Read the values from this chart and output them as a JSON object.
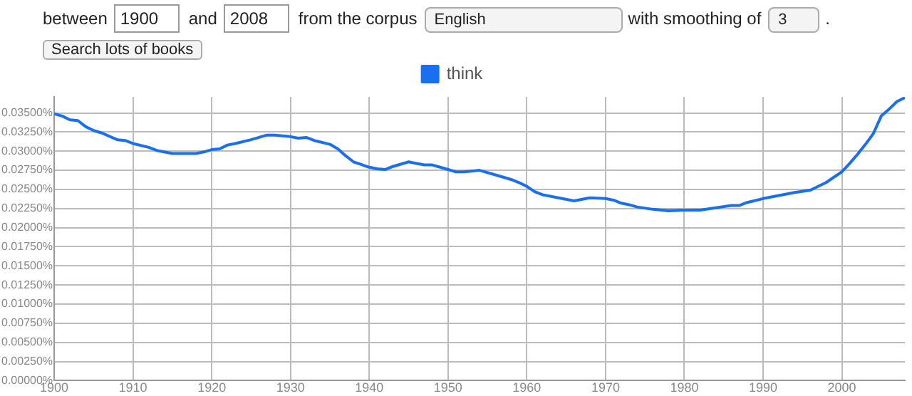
{
  "chart_data": {
    "type": "line",
    "annotations": [
      "between",
      "1900",
      "and",
      "2008",
      "from the corpus",
      "English",
      "with smoothing of",
      "3",
      ".",
      "Search lots of books"
    ],
    "x": [
      1900,
      1901,
      1902,
      1903,
      1904,
      1905,
      1906,
      1908,
      1909,
      1910,
      1912,
      1913,
      1915,
      1916,
      1918,
      1919,
      1920,
      1921,
      1922,
      1923,
      1925,
      1927,
      1928,
      1930,
      1931,
      1932,
      1933,
      1935,
      1936,
      1937,
      1938,
      1940,
      1941,
      1942,
      1943,
      1945,
      1946,
      1947,
      1948,
      1949,
      1951,
      1952,
      1953,
      1954,
      1956,
      1958,
      1959,
      1960,
      1961,
      1962,
      1964,
      1966,
      1968,
      1970,
      1971,
      1972,
      1973,
      1974,
      1976,
      1978,
      1980,
      1982,
      1984,
      1986,
      1987,
      1988,
      1990,
      1992,
      1994,
      1996,
      1998,
      2000,
      2001,
      2002,
      2003,
      2004,
      2005,
      2006,
      2007,
      2008
    ],
    "series": [
      {
        "name": "think",
        "color": "#1a6ff0",
        "values": [
          0.0349,
          0.0346,
          0.0341,
          0.034,
          0.0332,
          0.0327,
          0.0324,
          0.0315,
          0.0314,
          0.031,
          0.0305,
          0.0301,
          0.0297,
          0.0297,
          0.0297,
          0.0299,
          0.0302,
          0.0303,
          0.0308,
          0.031,
          0.0315,
          0.0321,
          0.0321,
          0.0319,
          0.0317,
          0.0318,
          0.0314,
          0.0309,
          0.0303,
          0.0294,
          0.0286,
          0.0279,
          0.0277,
          0.0276,
          0.028,
          0.0286,
          0.0284,
          0.0282,
          0.0282,
          0.0279,
          0.0273,
          0.0273,
          0.0274,
          0.0275,
          0.0269,
          0.0263,
          0.0259,
          0.0254,
          0.0247,
          0.0243,
          0.0239,
          0.0235,
          0.0239,
          0.0238,
          0.0236,
          0.0232,
          0.023,
          0.0227,
          0.0224,
          0.0222,
          0.0223,
          0.0223,
          0.0226,
          0.0229,
          0.0229,
          0.0233,
          0.0238,
          0.0242,
          0.0246,
          0.0249,
          0.0259,
          0.0273,
          0.0284,
          0.0296,
          0.0309,
          0.0323,
          0.0346,
          0.0355,
          0.0365,
          0.037
        ]
      }
    ],
    "xlim": [
      1900,
      2008
    ],
    "xticks": [
      1900,
      1910,
      1920,
      1930,
      1940,
      1950,
      1960,
      1970,
      1980,
      1990,
      2000
    ],
    "ylim": [
      0,
      0.0371
    ],
    "yticks": [
      {
        "value": 0,
        "label": "0.00000%"
      },
      {
        "value": 0.0025,
        "label": "0.00250%"
      },
      {
        "value": 0.005,
        "label": "0.00500%"
      },
      {
        "value": 0.0075,
        "label": "0.00750%"
      },
      {
        "value": 0.01,
        "label": "0.01000%"
      },
      {
        "value": 0.0125,
        "label": "0.01250%"
      },
      {
        "value": 0.015,
        "label": "0.01500%"
      },
      {
        "value": 0.0175,
        "label": "0.01750%"
      },
      {
        "value": 0.02,
        "label": "0.02000%"
      },
      {
        "value": 0.0225,
        "label": "0.02250%"
      },
      {
        "value": 0.025,
        "label": "0.02500%"
      },
      {
        "value": 0.0275,
        "label": "0.02750%"
      },
      {
        "value": 0.03,
        "label": "0.03000%"
      },
      {
        "value": 0.0325,
        "label": "0.03250%"
      },
      {
        "value": 0.035,
        "label": "0.03500%"
      }
    ],
    "grid": true,
    "legend": "top",
    "marker": "none",
    "line_style": "solid"
  }
}
